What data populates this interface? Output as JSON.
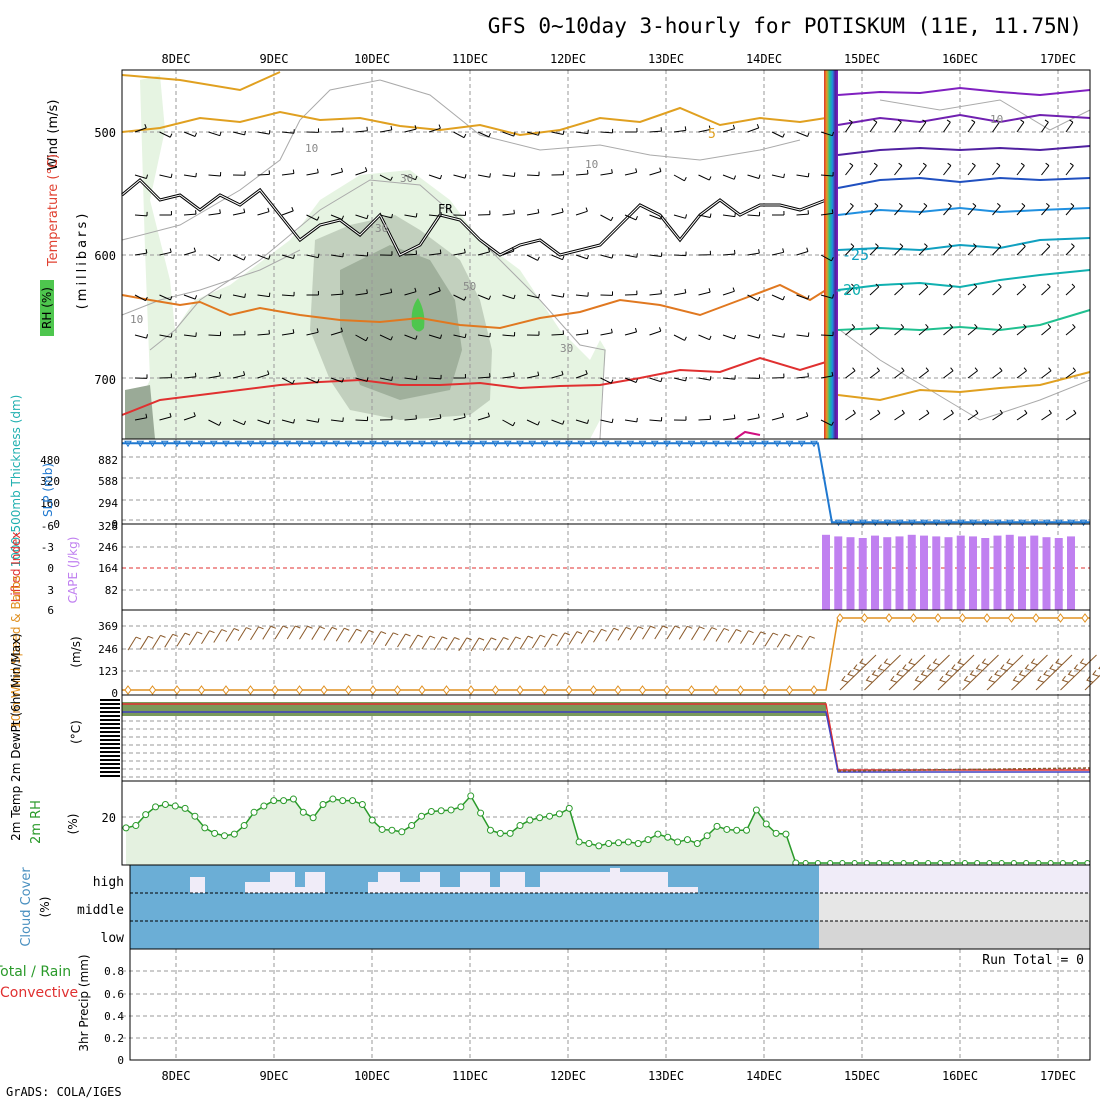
{
  "chart_data": {
    "type": "meteogram",
    "title": "GFS 0~10day 3-hourly for POTISKUM (11E, 11.75N)",
    "footer": "GrADS: COLA/IGES",
    "dates": [
      "8DEC",
      "9DEC",
      "10DEC",
      "11DEC",
      "12DEC",
      "13DEC",
      "14DEC",
      "15DEC",
      "16DEC",
      "17DEC"
    ],
    "data_end_day": 14.55,
    "colors": {
      "rh_green": "#e6f4e2",
      "rh_dark": "#9aaa97",
      "temp_red": "#e03030",
      "temp_orange": "#e07820",
      "temp_gold": "#e0a020",
      "freeze": "#000000",
      "slp": "#1f78d0",
      "cape": "#c080f0",
      "wind10m": "#e09020",
      "rh2m": "#2a9a2a",
      "cloud_fill": "#6baed6",
      "cloud_bg": "#f0ecf8",
      "precip_bg": "#dcdcdc"
    },
    "panels": {
      "upper_air": {
        "ylabel_wind": "Wind (m/s)",
        "ylabel_temp": "Temperature (°C)",
        "ylabel_rh": "RH (%)",
        "ylabel_mb": "(millibars)",
        "y_ticks": [
          "500",
          "600",
          "700"
        ],
        "contour_labels": [
          "10",
          "10",
          "10",
          "10",
          "30",
          "30",
          "50",
          "30",
          "5",
          "FR",
          "-25",
          "-20"
        ]
      },
      "thickness_slp": {
        "ylabel_thick": "1000-500mb Thickness (dm)",
        "ylabel_slp": "SLP (mb)",
        "left_ticks": [
          "480",
          "320",
          "160",
          "0"
        ],
        "right_ticks": [
          "882",
          "588",
          "294",
          "0"
        ],
        "slp_before": 0.95,
        "slp_after": 0.02
      },
      "cape_li": {
        "ylabel_li": "Lifted Index",
        "ylabel_cape": "CAPE (J/kg)",
        "left_ticks": [
          "-6",
          "-3",
          "0",
          "3",
          "6"
        ],
        "right_ticks": [
          "328",
          "246",
          "164",
          "82"
        ],
        "bars": [
          0.94,
          0.92,
          0.91,
          0.9,
          0.93,
          0.91,
          0.92,
          0.94,
          0.93,
          0.92,
          0.91,
          0.93,
          0.92,
          0.9,
          0.93,
          0.94,
          0.92,
          0.93,
          0.91,
          0.9,
          0.92
        ]
      },
      "wind10m": {
        "ylabel": "10m Wind Speed & Barbs",
        "unit": "(m/s)",
        "ticks": [
          "369",
          "246",
          "123",
          "0"
        ]
      },
      "temp2m": {
        "ylabel": "2m Temp 2m DewPt (6hr Min/Max)",
        "unit": "(°C)"
      },
      "rh2m": {
        "ylabel": "2m RH",
        "unit": "(%)",
        "ticks": [
          "20"
        ],
        "values": [
          0.45,
          0.48,
          0.62,
          0.72,
          0.75,
          0.73,
          0.7,
          0.6,
          0.45,
          0.38,
          0.35,
          0.37,
          0.48,
          0.65,
          0.73,
          0.8,
          0.8,
          0.82,
          0.65,
          0.58,
          0.75,
          0.82,
          0.8,
          0.8,
          0.75,
          0.55,
          0.43,
          0.42,
          0.4,
          0.48,
          0.6,
          0.66,
          0.67,
          0.68,
          0.72,
          0.86,
          0.64,
          0.42,
          0.38,
          0.38,
          0.48,
          0.55,
          0.58,
          0.6,
          0.63,
          0.7,
          0.27,
          0.25,
          0.22,
          0.25,
          0.26,
          0.27,
          0.25,
          0.3,
          0.37,
          0.33,
          0.27,
          0.3,
          0.25,
          0.35,
          0.47,
          0.43,
          0.42,
          0.42,
          0.68,
          0.5,
          0.38,
          0.37,
          0.0
        ]
      },
      "cloud": {
        "ylabel": "Cloud Cover",
        "unit": "(%)",
        "levels": [
          "high",
          "middle",
          "low"
        ]
      },
      "precip": {
        "ylabel_total": "Total / Rain",
        "ylabel_conv": "Convective",
        "ylabel": "3hr Precip (mm)",
        "ticks": [
          "0.8",
          "0.6",
          "0.4",
          "0.2",
          "0"
        ],
        "run_total": "Run Total = 0"
      }
    }
  }
}
